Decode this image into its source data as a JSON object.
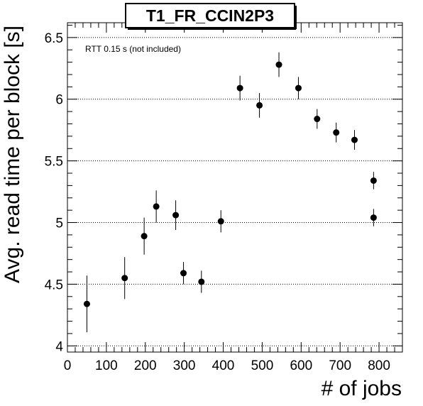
{
  "chart_data": {
    "type": "scatter",
    "title": "T1_FR_CCIN2P3",
    "xlabel": "# of jobs",
    "ylabel": "Avg. read time per block [s]",
    "annotation": "RTT 0.15 s (not included)",
    "xlim": [
      0,
      860
    ],
    "ylim": [
      3.95,
      6.62
    ],
    "xticks": [
      0,
      100,
      200,
      300,
      400,
      500,
      600,
      700,
      800
    ],
    "yticks": [
      4,
      4.5,
      5,
      5.5,
      6,
      6.5
    ],
    "ytick_labels": [
      "4",
      "4.5",
      "5",
      "5.5",
      "6",
      "6.5"
    ],
    "grid": "horizontal-dotted",
    "series": [
      {
        "points": [
          {
            "x": 50,
            "y": 4.34,
            "err": 0.23
          },
          {
            "x": 147,
            "y": 4.55,
            "err": 0.17
          },
          {
            "x": 197,
            "y": 4.89,
            "err": 0.15
          },
          {
            "x": 228,
            "y": 5.13,
            "err": 0.13
          },
          {
            "x": 278,
            "y": 5.06,
            "err": 0.12
          },
          {
            "x": 298,
            "y": 4.59,
            "err": 0.09
          },
          {
            "x": 344,
            "y": 4.52,
            "err": 0.09
          },
          {
            "x": 394,
            "y": 5.01,
            "err": 0.09
          },
          {
            "x": 443,
            "y": 6.09,
            "err": 0.1
          },
          {
            "x": 493,
            "y": 5.95,
            "err": 0.1
          },
          {
            "x": 543,
            "y": 6.28,
            "err": 0.1
          },
          {
            "x": 593,
            "y": 6.09,
            "err": 0.09
          },
          {
            "x": 641,
            "y": 5.84,
            "err": 0.08
          },
          {
            "x": 690,
            "y": 5.73,
            "err": 0.08
          },
          {
            "x": 737,
            "y": 5.67,
            "err": 0.08
          },
          {
            "x": 786,
            "y": 5.34,
            "err": 0.07
          },
          {
            "x": 786,
            "y": 5.04,
            "err": 0.07
          }
        ]
      }
    ]
  }
}
